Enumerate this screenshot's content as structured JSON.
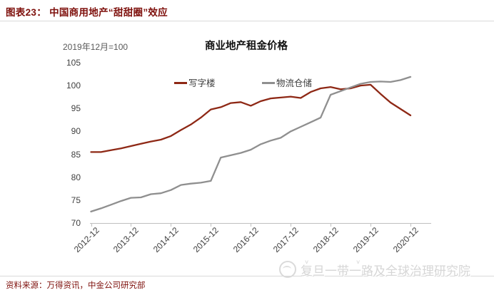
{
  "header": {
    "title": "图表23： 中国商用地产“甜甜圈”效应"
  },
  "chart_data": {
    "type": "line",
    "title": "商业地产租金价格",
    "unit_note": "2019年12月=100",
    "xlabel": "",
    "ylabel": "",
    "ylim": [
      70,
      105
    ],
    "y_ticks": [
      105,
      100,
      95,
      90,
      85,
      80,
      75,
      70
    ],
    "x_tick_labels": [
      "2012-12",
      "2013-12",
      "2014-12",
      "2015-12",
      "2016-12",
      "2017-12",
      "2018-12",
      "2019-12",
      "2020-12"
    ],
    "x_frequency": "quarterly",
    "x_range": [
      "2012-12",
      "2020-12"
    ],
    "grid": false,
    "legend_position": "top-center",
    "series": [
      {
        "name": "写字楼",
        "color": "#8e2815",
        "values": [
          85.5,
          85.5,
          85.9,
          86.3,
          86.8,
          87.3,
          87.8,
          88.2,
          89.0,
          90.3,
          91.5,
          93.0,
          94.8,
          95.3,
          96.2,
          96.4,
          95.6,
          96.6,
          97.2,
          97.4,
          97.6,
          97.3,
          98.6,
          99.4,
          99.7,
          99.2,
          99.4,
          100.0,
          100.2,
          98.2,
          96.3,
          94.9,
          93.5
        ]
      },
      {
        "name": "物流仓储",
        "color": "#8f8f8f",
        "values": [
          72.5,
          73.2,
          74.0,
          74.8,
          75.5,
          75.6,
          76.3,
          76.5,
          77.2,
          78.3,
          78.6,
          78.8,
          79.2,
          84.3,
          84.8,
          85.3,
          86.0,
          87.2,
          88.0,
          88.6,
          90.0,
          91.0,
          92.0,
          93.0,
          98.0,
          98.8,
          99.6,
          100.4,
          100.8,
          100.9,
          100.8,
          101.2,
          101.9
        ]
      }
    ]
  },
  "footer": {
    "source": "资料来源：万得资讯，中金公司研究部"
  },
  "watermark": {
    "text": "复旦一带一路及全球治理研究院",
    "icon": "seal-logo-icon"
  }
}
